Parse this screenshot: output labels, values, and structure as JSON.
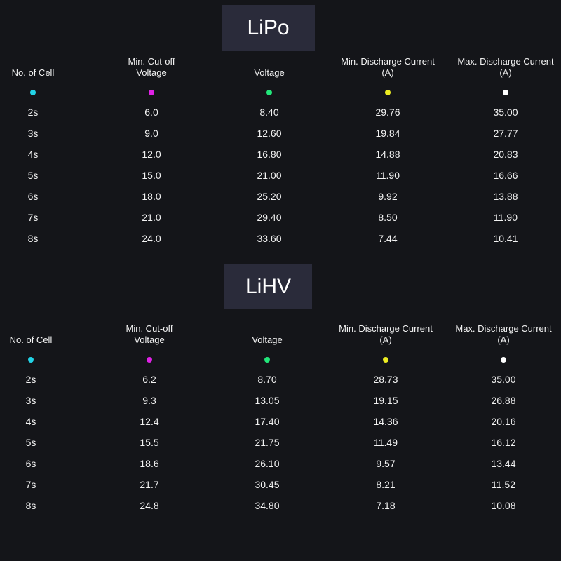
{
  "sections": [
    {
      "title": "LiPo",
      "headers": [
        "No. of Cell",
        "Min. Cut-off\nVoltage",
        "Voltage",
        "Min. Discharge Current\n(A)",
        "Max. Discharge Current\n(A)"
      ],
      "dot_colors": [
        "#22d3e6",
        "#e022e6",
        "#22e67a",
        "#ecec22",
        "#ffffff"
      ],
      "rows": [
        [
          "2s",
          "6.0",
          "8.40",
          "29.76",
          "35.00"
        ],
        [
          "3s",
          "9.0",
          "12.60",
          "19.84",
          "27.77"
        ],
        [
          "4s",
          "12.0",
          "16.80",
          "14.88",
          "20.83"
        ],
        [
          "5s",
          "15.0",
          "21.00",
          "11.90",
          "16.66"
        ],
        [
          "6s",
          "18.0",
          "25.20",
          "9.92",
          "13.88"
        ],
        [
          "7s",
          "21.0",
          "29.40",
          "8.50",
          "11.90"
        ],
        [
          "8s",
          "24.0",
          "33.60",
          "7.44",
          "10.41"
        ]
      ]
    },
    {
      "title": "LiHV",
      "headers": [
        "No. of Cell",
        "Min. Cut-off\nVoltage",
        "Voltage",
        "Min. Discharge Current\n(A)",
        "Max. Discharge Current\n(A)"
      ],
      "dot_colors": [
        "#22d3e6",
        "#e022e6",
        "#22e67a",
        "#ecec22",
        "#ffffff"
      ],
      "rows": [
        [
          "2s",
          "6.2",
          "8.70",
          "28.73",
          "35.00"
        ],
        [
          "3s",
          "9.3",
          "13.05",
          "19.15",
          "26.88"
        ],
        [
          "4s",
          "12.4",
          "17.40",
          "14.36",
          "20.16"
        ],
        [
          "5s",
          "15.5",
          "21.75",
          "11.49",
          "16.12"
        ],
        [
          "6s",
          "18.6",
          "26.10",
          "9.57",
          "13.44"
        ],
        [
          "7s",
          "21.7",
          "30.45",
          "8.21",
          "11.52"
        ],
        [
          "8s",
          "24.8",
          "34.80",
          "7.18",
          "10.08"
        ]
      ]
    }
  ]
}
